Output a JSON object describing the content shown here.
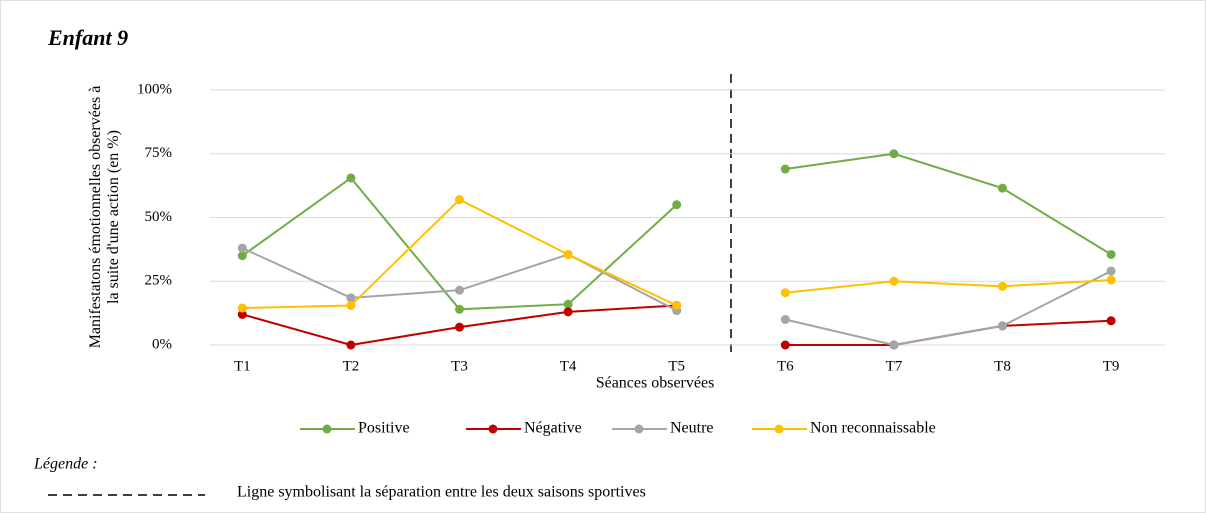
{
  "chart_data": {
    "type": "line",
    "title": "Enfant 9",
    "y_label": "Manifestatons émotionnelles observées à la suite d'une action (en %)",
    "x_label": "Séances observées",
    "categories": [
      "T1",
      "T2",
      "T3",
      "T4",
      "T5",
      "T6",
      "T7",
      "T8",
      "T9"
    ],
    "series": [
      {
        "name": "Positive",
        "color": "#70ad47",
        "values": [
          35,
          65.5,
          14,
          16,
          55,
          69,
          75,
          61.5,
          35.5
        ]
      },
      {
        "name": "Négative",
        "color": "#c00000",
        "values": [
          12,
          0,
          7,
          13,
          15.5,
          0,
          0,
          7.5,
          9.5
        ]
      },
      {
        "name": "Neutre",
        "color": "#a5a5a5",
        "values": [
          38,
          18.5,
          21.5,
          35.5,
          13.5,
          10,
          0,
          7.5,
          29
        ]
      },
      {
        "name": "Non reconnaissable",
        "color": "#ffc000",
        "values": [
          14.5,
          15.5,
          57,
          35.5,
          15.5,
          20.5,
          25,
          23,
          25.5
        ]
      }
    ],
    "ylim": [
      0,
      100
    ],
    "yticks": [
      {
        "value": 0,
        "label": "0%"
      },
      {
        "value": 25,
        "label": "25%"
      },
      {
        "value": 50,
        "label": "50%"
      },
      {
        "value": 75,
        "label": "75%"
      },
      {
        "value": 100,
        "label": "100%"
      }
    ],
    "grid": true,
    "legend": "bottom",
    "note": {
      "heading": "Légende :",
      "text": "Ligne symbolisant la séparation entre les deux saisons sportives"
    }
  }
}
